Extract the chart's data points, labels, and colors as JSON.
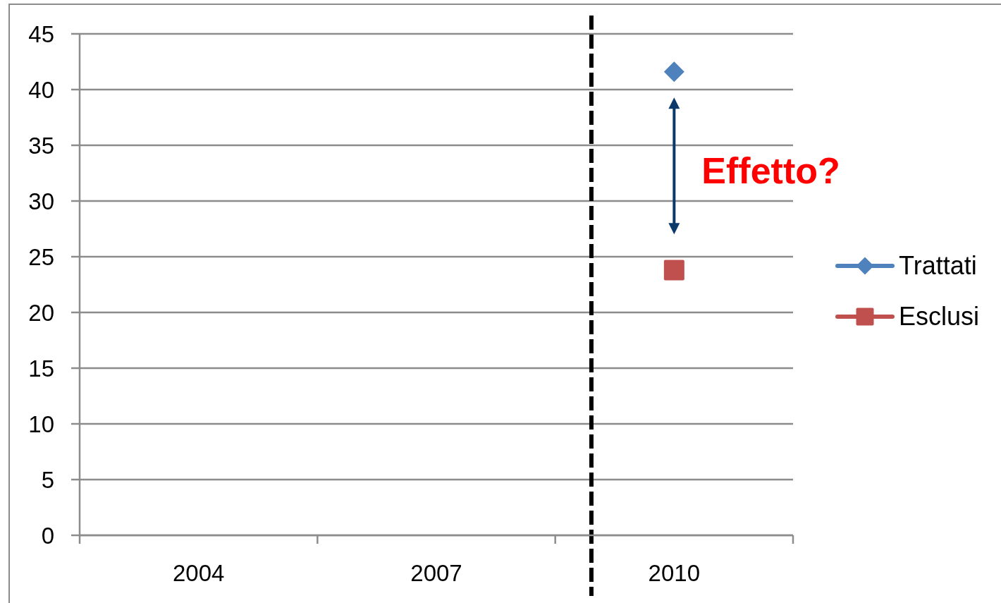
{
  "chart_data": {
    "type": "line",
    "categories": [
      "2004",
      "2007",
      "2010"
    ],
    "series": [
      {
        "name": "Trattati",
        "color": "#4f81bd",
        "marker": "diamond",
        "values": [
          null,
          null,
          41.6
        ]
      },
      {
        "name": "Esclusi",
        "color": "#c0504d",
        "marker": "square",
        "values": [
          null,
          null,
          23.8
        ]
      }
    ],
    "ylim": [
      0,
      45
    ],
    "yticks": [
      0,
      5,
      10,
      15,
      20,
      25,
      30,
      35,
      40,
      45
    ],
    "grid": "y",
    "legend": "right",
    "ref_lines": [
      {
        "axis": "x",
        "value": "2010",
        "color": "#000000",
        "line_style": "dashed"
      }
    ],
    "annotations": [
      "Effetto?"
    ]
  }
}
